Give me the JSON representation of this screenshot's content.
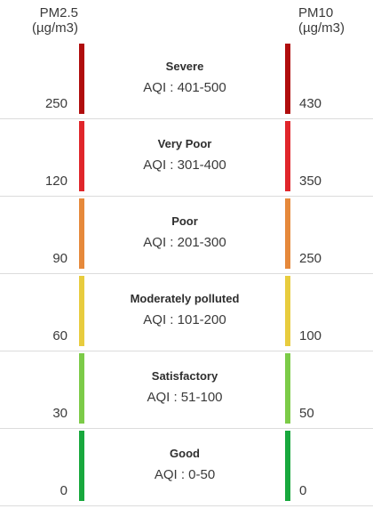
{
  "header": {
    "pm25_label": "PM2.5",
    "pm25_unit": "(µg/m3)",
    "pm10_label": "PM10",
    "pm10_unit": "(µg/m3)"
  },
  "categories": [
    {
      "name": "Severe",
      "aqi": "AQI : 401-500",
      "pm25": "250",
      "pm10": "430",
      "color": "#b00d0d"
    },
    {
      "name": "Very Poor",
      "aqi": "AQI : 301-400",
      "pm25": "120",
      "pm10": "350",
      "color": "#e0262b"
    },
    {
      "name": "Poor",
      "aqi": "AQI : 201-300",
      "pm25": "90",
      "pm10": "250",
      "color": "#e6893b"
    },
    {
      "name": "Moderately polluted",
      "aqi": "AQI : 101-200",
      "pm25": "60",
      "pm10": "100",
      "color": "#e8cc3e"
    },
    {
      "name": "Satisfactory",
      "aqi": "AQI : 51-100",
      "pm25": "30",
      "pm10": "50",
      "color": "#7ccb48"
    },
    {
      "name": "Good",
      "aqi": "AQI : 0-50",
      "pm25": "0",
      "pm10": "0",
      "color": "#18a83d"
    }
  ]
}
